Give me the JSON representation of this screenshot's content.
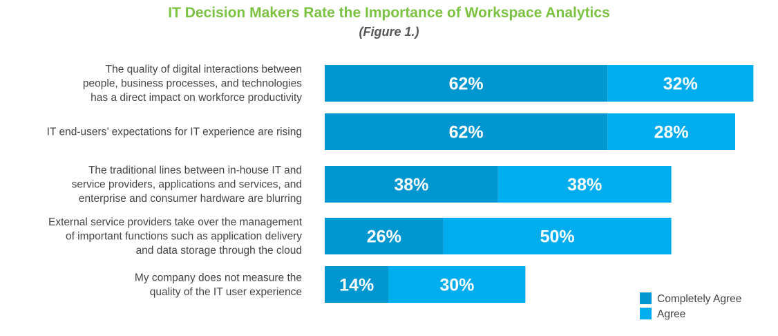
{
  "colors": {
    "title": "#7cc242",
    "completely_agree": "#0096cf",
    "agree": "#00adee"
  },
  "chart_data": {
    "type": "bar",
    "orientation": "horizontal",
    "stacked": true,
    "title": "IT Decision Makers Rate the Importance of Workspace Analytics",
    "subtitle": "(Figure 1.)",
    "categories": [
      [
        "The quality of digital interactions between",
        "people, business processes, and technologies",
        "has a direct impact on workforce productivity"
      ],
      [
        "IT end-users’ expectations for IT experience are rising"
      ],
      [
        "The traditional lines between in-house IT and",
        "service providers, applications and services, and",
        "enterprise and consumer hardware are blurring"
      ],
      [
        "External service providers take over the management",
        "of important functions such as application delivery",
        "and data storage through the cloud"
      ],
      [
        "My company does not measure the",
        "quality of the IT user experience"
      ]
    ],
    "series": [
      {
        "name": "Completely Agree",
        "values": [
          62,
          62,
          38,
          26,
          14
        ],
        "labels": [
          "62%",
          "62%",
          "38%",
          "26%",
          "14%"
        ]
      },
      {
        "name": "Agree",
        "values": [
          32,
          28,
          38,
          50,
          30
        ],
        "labels": [
          "32%",
          "28%",
          "38%",
          "50%",
          "30%"
        ]
      }
    ],
    "unit": "%",
    "legend_position": "bottom-right",
    "grid": false
  }
}
